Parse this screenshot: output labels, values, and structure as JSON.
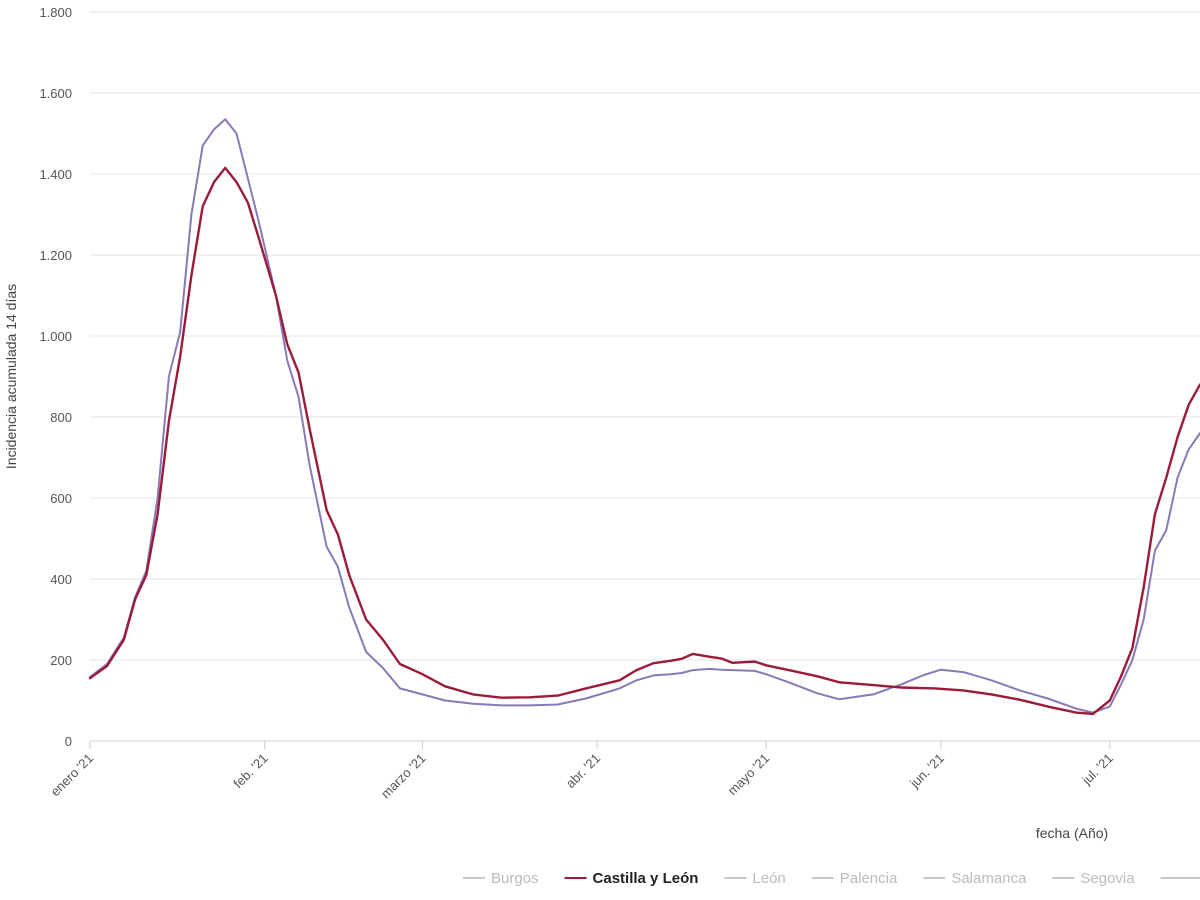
{
  "chart_data": {
    "type": "line",
    "title": "",
    "xlabel": "fecha (Año)",
    "ylabel": "Incidencia acumulada 14 días",
    "ylim": [
      0,
      1800
    ],
    "xlim": [
      "2021-01-01",
      "2021-07-17"
    ],
    "grid": true,
    "legend_position": "bottom",
    "y_ticks": [
      {
        "value": 0,
        "label": "0"
      },
      {
        "value": 200,
        "label": "200"
      },
      {
        "value": 400,
        "label": "400"
      },
      {
        "value": 600,
        "label": "600"
      },
      {
        "value": 800,
        "label": "800"
      },
      {
        "value": 1000,
        "label": "1.000"
      },
      {
        "value": 1200,
        "label": "1.200"
      },
      {
        "value": 1400,
        "label": "1.400"
      },
      {
        "value": 1600,
        "label": "1.600"
      },
      {
        "value": 1800,
        "label": "1.800"
      }
    ],
    "x_ticks": [
      {
        "date": "2021-01-01",
        "label": "enero '21"
      },
      {
        "date": "2021-02-01",
        "label": "feb. '21"
      },
      {
        "date": "2021-03-01",
        "label": "marzo '21"
      },
      {
        "date": "2021-04-01",
        "label": "abr. '21"
      },
      {
        "date": "2021-05-01",
        "label": "mayo '21"
      },
      {
        "date": "2021-06-01",
        "label": "jun. '21"
      },
      {
        "date": "2021-07-01",
        "label": "jul. '21"
      }
    ],
    "legend": [
      {
        "name": "Burgos",
        "color": "#c8c8cc",
        "active": false
      },
      {
        "name": "Castilla y León",
        "color": "#9b1b3a",
        "active": true
      },
      {
        "name": "León",
        "color": "#c8c8cc",
        "active": false
      },
      {
        "name": "Palencia",
        "color": "#c8c8cc",
        "active": false
      },
      {
        "name": "Salamanca",
        "color": "#c8c8cc",
        "active": false
      },
      {
        "name": "Segovia",
        "color": "#c8c8cc",
        "active": false
      }
    ],
    "series": [
      {
        "name": "Castilla y León",
        "color": "#9b1b3a",
        "points": [
          [
            "2021-01-01",
            155
          ],
          [
            "2021-01-04",
            185
          ],
          [
            "2021-01-07",
            250
          ],
          [
            "2021-01-09",
            350
          ],
          [
            "2021-01-11",
            410
          ],
          [
            "2021-01-13",
            560
          ],
          [
            "2021-01-15",
            790
          ],
          [
            "2021-01-17",
            950
          ],
          [
            "2021-01-19",
            1150
          ],
          [
            "2021-01-21",
            1320
          ],
          [
            "2021-01-23",
            1380
          ],
          [
            "2021-01-25",
            1415
          ],
          [
            "2021-01-27",
            1380
          ],
          [
            "2021-01-29",
            1330
          ],
          [
            "2021-01-31",
            1240
          ],
          [
            "2021-02-03",
            1100
          ],
          [
            "2021-02-05",
            980
          ],
          [
            "2021-02-07",
            910
          ],
          [
            "2021-02-09",
            770
          ],
          [
            "2021-02-12",
            570
          ],
          [
            "2021-02-14",
            510
          ],
          [
            "2021-02-16",
            410
          ],
          [
            "2021-02-19",
            300
          ],
          [
            "2021-02-22",
            250
          ],
          [
            "2021-02-25",
            190
          ],
          [
            "2021-03-01",
            165
          ],
          [
            "2021-03-05",
            135
          ],
          [
            "2021-03-10",
            115
          ],
          [
            "2021-03-15",
            107
          ],
          [
            "2021-03-20",
            108
          ],
          [
            "2021-03-25",
            112
          ],
          [
            "2021-03-30",
            130
          ],
          [
            "2021-04-05",
            150
          ],
          [
            "2021-04-08",
            175
          ],
          [
            "2021-04-11",
            192
          ],
          [
            "2021-04-14",
            198
          ],
          [
            "2021-04-16",
            203
          ],
          [
            "2021-04-18",
            215
          ],
          [
            "2021-04-21",
            208
          ],
          [
            "2021-04-23",
            204
          ],
          [
            "2021-04-25",
            193
          ],
          [
            "2021-04-29",
            196
          ],
          [
            "2021-05-01",
            187
          ],
          [
            "2021-05-05",
            175
          ],
          [
            "2021-05-10",
            160
          ],
          [
            "2021-05-14",
            145
          ],
          [
            "2021-05-20",
            138
          ],
          [
            "2021-05-25",
            132
          ],
          [
            "2021-05-31",
            130
          ],
          [
            "2021-06-05",
            125
          ],
          [
            "2021-06-10",
            115
          ],
          [
            "2021-06-15",
            102
          ],
          [
            "2021-06-20",
            85
          ],
          [
            "2021-06-25",
            70
          ],
          [
            "2021-06-28",
            67
          ],
          [
            "2021-07-01",
            100
          ],
          [
            "2021-07-03",
            160
          ],
          [
            "2021-07-05",
            230
          ],
          [
            "2021-07-07",
            380
          ],
          [
            "2021-07-09",
            560
          ],
          [
            "2021-07-11",
            650
          ],
          [
            "2021-07-13",
            750
          ],
          [
            "2021-07-15",
            830
          ],
          [
            "2021-07-17",
            880
          ]
        ]
      },
      {
        "name": "",
        "color": "#8a78b8",
        "points": [
          [
            "2021-01-01",
            158
          ],
          [
            "2021-01-04",
            190
          ],
          [
            "2021-01-07",
            255
          ],
          [
            "2021-01-09",
            355
          ],
          [
            "2021-01-11",
            420
          ],
          [
            "2021-01-13",
            600
          ],
          [
            "2021-01-15",
            900
          ],
          [
            "2021-01-17",
            1010
          ],
          [
            "2021-01-19",
            1300
          ],
          [
            "2021-01-21",
            1470
          ],
          [
            "2021-01-23",
            1510
          ],
          [
            "2021-01-25",
            1535
          ],
          [
            "2021-01-27",
            1500
          ],
          [
            "2021-01-29",
            1390
          ],
          [
            "2021-01-31",
            1280
          ],
          [
            "2021-02-03",
            1100
          ],
          [
            "2021-02-05",
            940
          ],
          [
            "2021-02-07",
            850
          ],
          [
            "2021-02-09",
            680
          ],
          [
            "2021-02-12",
            480
          ],
          [
            "2021-02-14",
            430
          ],
          [
            "2021-02-16",
            330
          ],
          [
            "2021-02-19",
            220
          ],
          [
            "2021-02-22",
            180
          ],
          [
            "2021-02-25",
            130
          ],
          [
            "2021-03-01",
            115
          ],
          [
            "2021-03-05",
            100
          ],
          [
            "2021-03-10",
            92
          ],
          [
            "2021-03-15",
            88
          ],
          [
            "2021-03-20",
            88
          ],
          [
            "2021-03-25",
            90
          ],
          [
            "2021-03-30",
            105
          ],
          [
            "2021-04-05",
            130
          ],
          [
            "2021-04-08",
            150
          ],
          [
            "2021-04-11",
            162
          ],
          [
            "2021-04-14",
            165
          ],
          [
            "2021-04-16",
            168
          ],
          [
            "2021-04-18",
            175
          ],
          [
            "2021-04-21",
            178
          ],
          [
            "2021-04-23",
            176
          ],
          [
            "2021-04-25",
            175
          ],
          [
            "2021-04-29",
            173
          ],
          [
            "2021-05-01",
            165
          ],
          [
            "2021-05-05",
            145
          ],
          [
            "2021-05-10",
            118
          ],
          [
            "2021-05-14",
            103
          ],
          [
            "2021-05-20",
            115
          ],
          [
            "2021-05-25",
            140
          ],
          [
            "2021-05-29",
            163
          ],
          [
            "2021-06-01",
            176
          ],
          [
            "2021-06-05",
            170
          ],
          [
            "2021-06-10",
            150
          ],
          [
            "2021-06-15",
            125
          ],
          [
            "2021-06-20",
            105
          ],
          [
            "2021-06-25",
            80
          ],
          [
            "2021-06-28",
            70
          ],
          [
            "2021-07-01",
            85
          ],
          [
            "2021-07-03",
            140
          ],
          [
            "2021-07-05",
            200
          ],
          [
            "2021-07-07",
            300
          ],
          [
            "2021-07-09",
            470
          ],
          [
            "2021-07-11",
            520
          ],
          [
            "2021-07-13",
            650
          ],
          [
            "2021-07-15",
            720
          ],
          [
            "2021-07-17",
            760
          ]
        ]
      }
    ]
  }
}
